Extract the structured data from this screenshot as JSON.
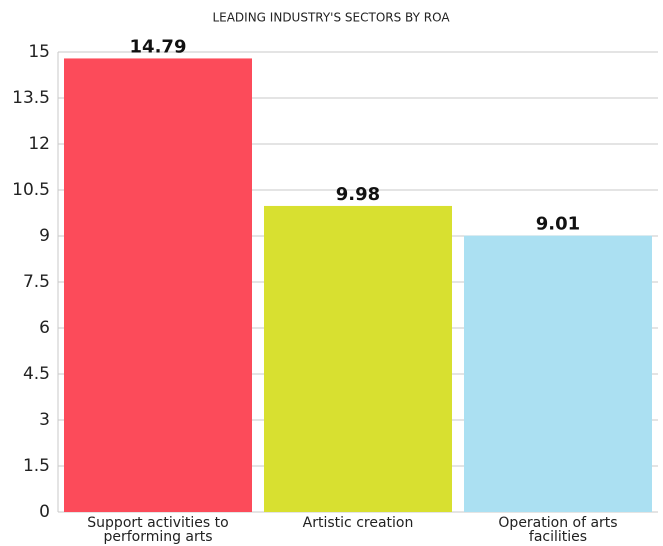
{
  "chart_data": {
    "type": "bar",
    "title": "LEADING INDUSTRY'S SECTORS BY ROA",
    "categories": [
      "Support activities to performing arts",
      "Artistic creation",
      "Operation of arts facilities"
    ],
    "values": [
      14.79,
      9.98,
      9.01
    ],
    "colors": [
      "#fc4b5a",
      "#d8e030",
      "#abe0f2"
    ],
    "ylim": [
      0,
      15
    ],
    "yticks": [
      0,
      1.5,
      3,
      4.5,
      6,
      7.5,
      9,
      10.5,
      12,
      13.5,
      15
    ],
    "grid": true
  }
}
